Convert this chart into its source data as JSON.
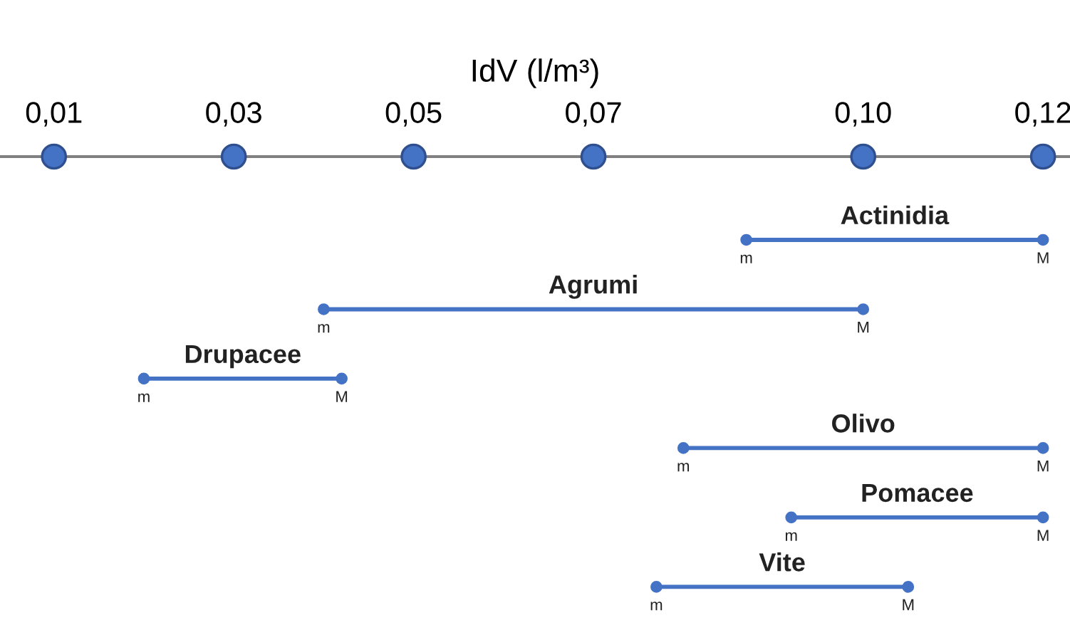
{
  "chart_data": {
    "type": "bar",
    "orientation": "horizontal",
    "xlabel": "IdV (l/m³)",
    "categories": [
      "Actinidia",
      "Agrumi",
      "Drupacee",
      "Olivo",
      "Pomacee",
      "Vite"
    ],
    "base": [
      0.087,
      0.04,
      0.02,
      0.08,
      0.092,
      0.077
    ],
    "values": [
      0.033,
      0.06,
      0.022,
      0.04,
      0.028,
      0.028
    ],
    "color": "#4472c4",
    "marker": "circle",
    "xlim": [
      0.004,
      0.123
    ],
    "xticks": [
      {
        "value": 0.01,
        "label": "0,01"
      },
      {
        "value": 0.03,
        "label": "0,03"
      },
      {
        "value": 0.05,
        "label": "0,05"
      },
      {
        "value": 0.07,
        "label": "0,07"
      },
      {
        "value": 0.1,
        "label": "0,10"
      },
      {
        "value": 0.12,
        "label": "0,12"
      }
    ],
    "annotations": [
      {
        "text": "m",
        "x": 0.087,
        "y": "Actinidia"
      },
      {
        "text": "M",
        "x": 0.12,
        "y": "Actinidia"
      },
      {
        "text": "m",
        "x": 0.04,
        "y": "Agrumi"
      },
      {
        "text": "M",
        "x": 0.1,
        "y": "Agrumi"
      },
      {
        "text": "m",
        "x": 0.02,
        "y": "Drupacee"
      },
      {
        "text": "M",
        "x": 0.042,
        "y": "Drupacee"
      },
      {
        "text": "m",
        "x": 0.08,
        "y": "Olivo"
      },
      {
        "text": "M",
        "x": 0.12,
        "y": "Olivo"
      },
      {
        "text": "m",
        "x": 0.092,
        "y": "Pomacee"
      },
      {
        "text": "M",
        "x": 0.12,
        "y": "Pomacee"
      },
      {
        "text": "m",
        "x": 0.077,
        "y": "Vite"
      },
      {
        "text": "M",
        "x": 0.105,
        "y": "Vite"
      }
    ],
    "grid": false,
    "legend": false
  }
}
